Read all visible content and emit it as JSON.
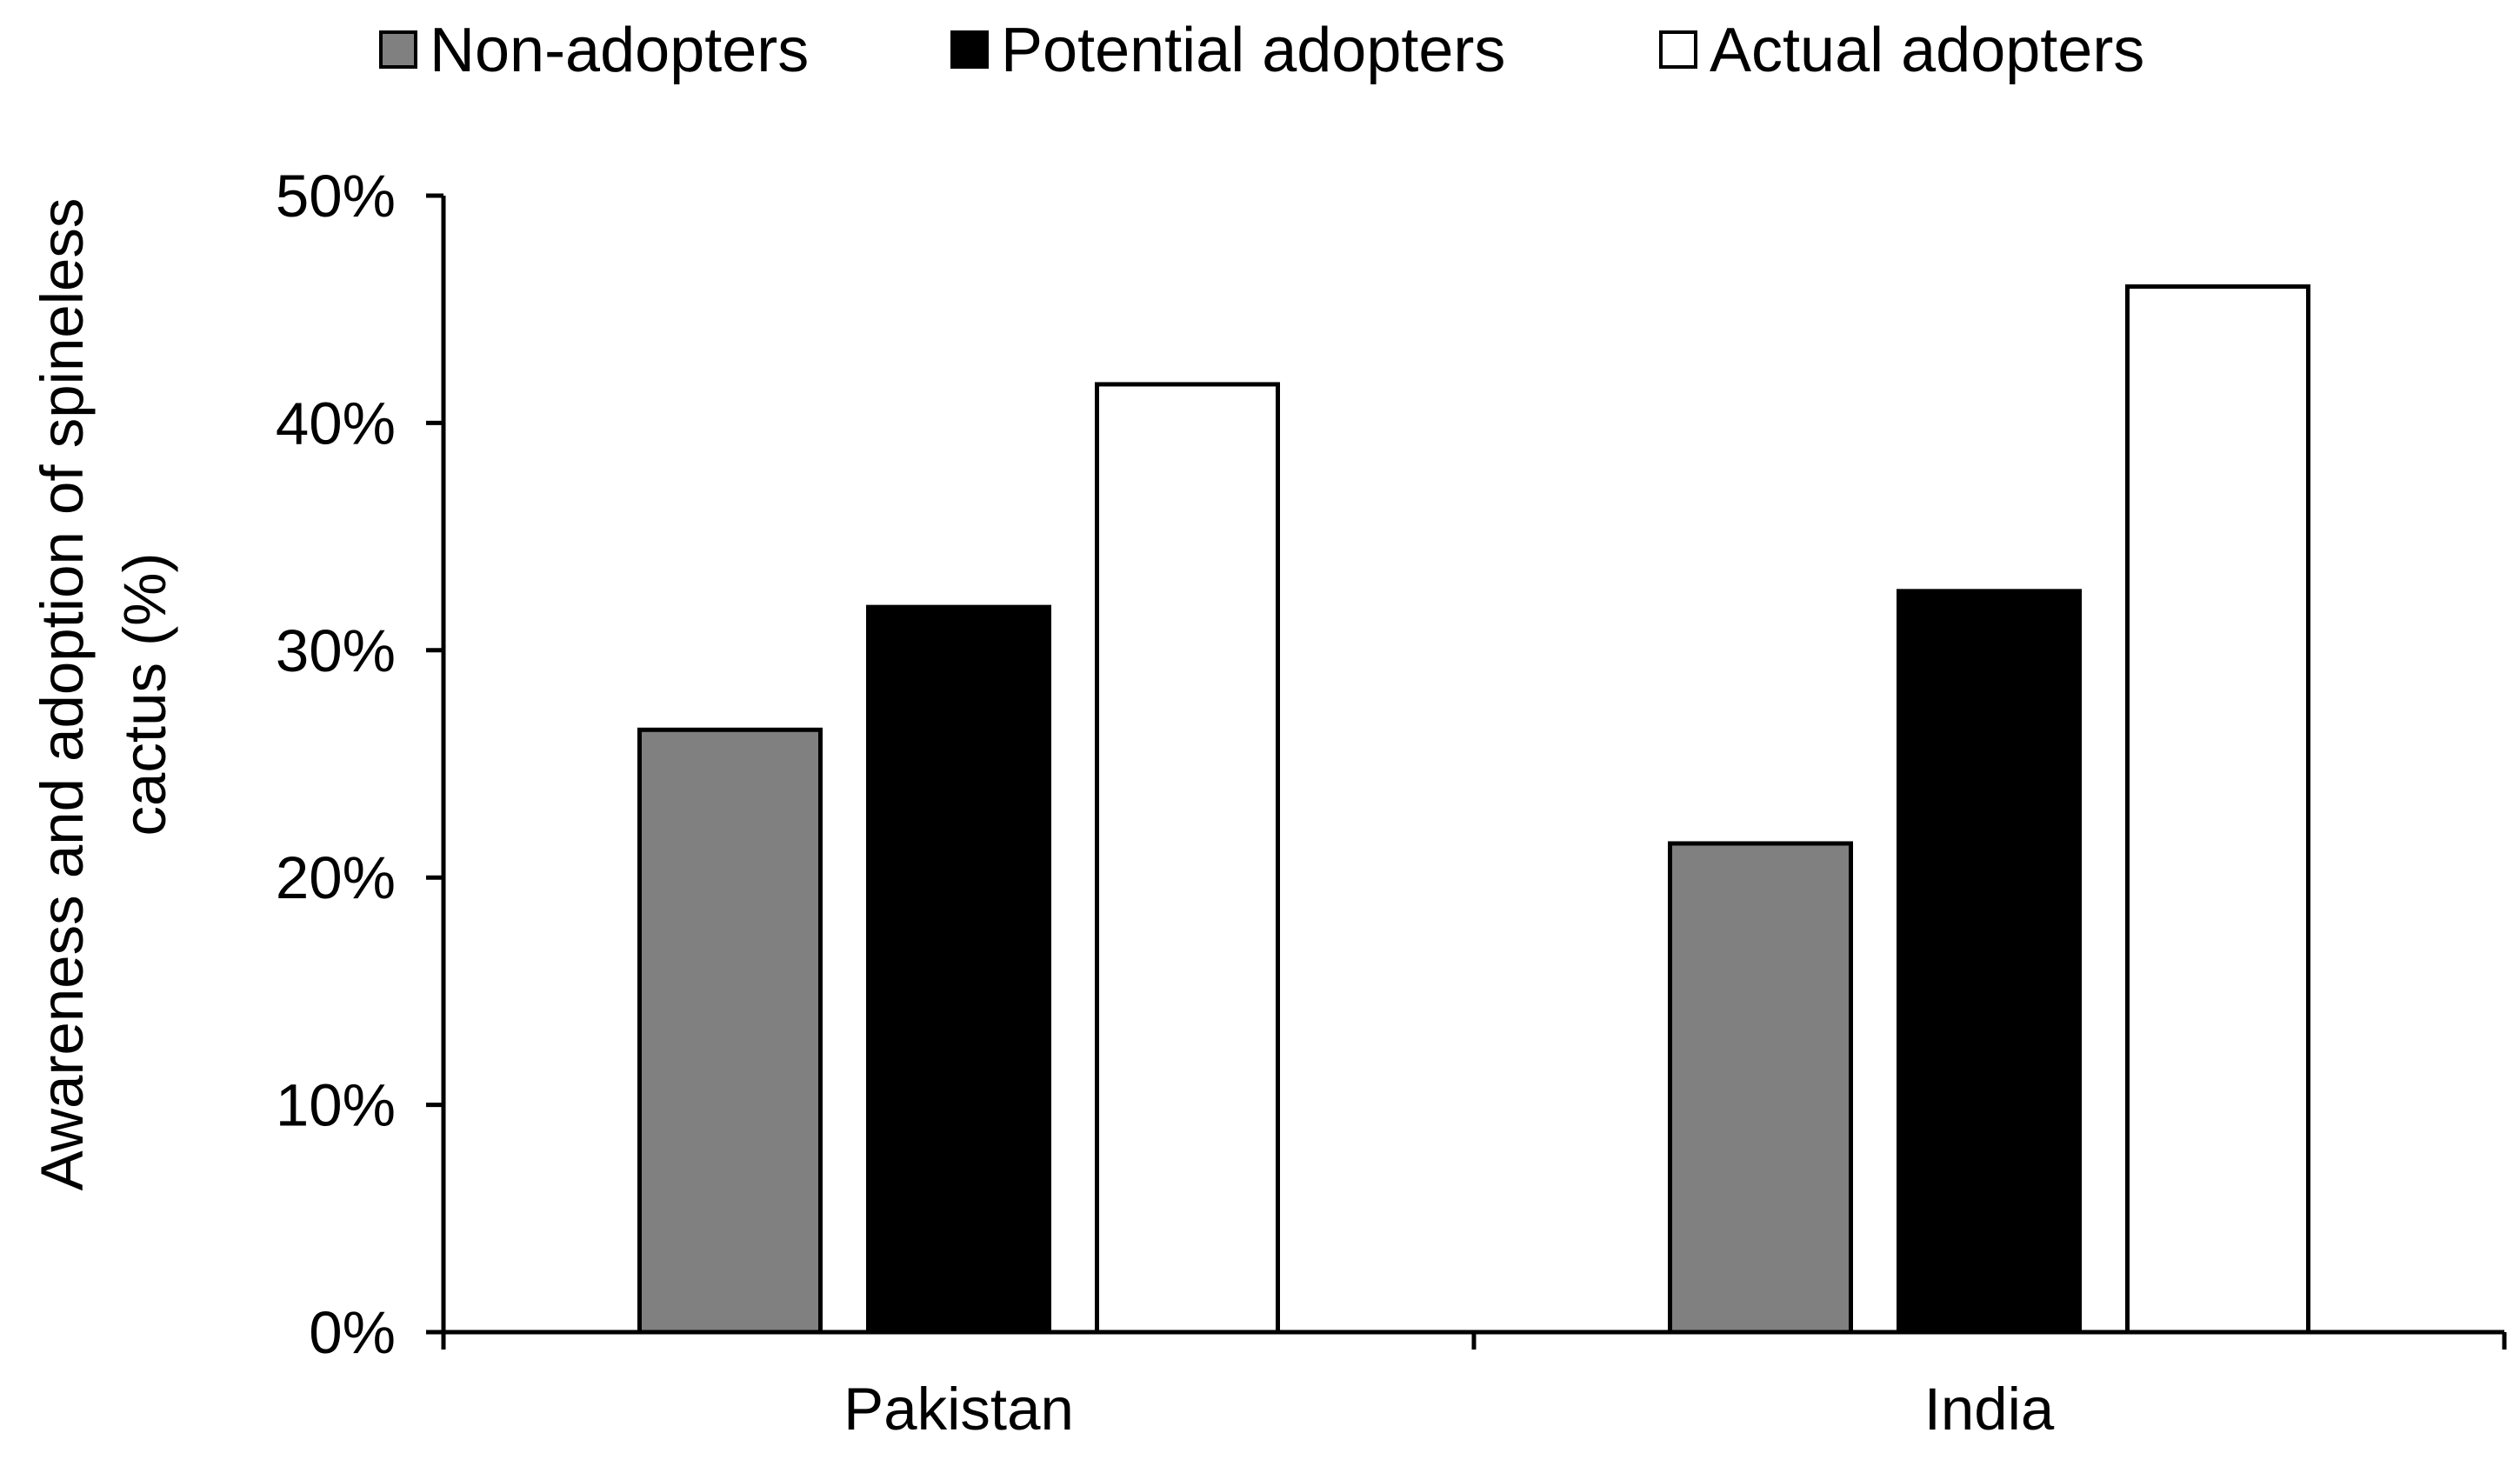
{
  "chart_data": {
    "type": "bar",
    "categories": [
      "Pakistan",
      "India"
    ],
    "series": [
      {
        "name": "Non-adopters",
        "values": [
          26.5,
          21.5
        ],
        "color": "#808080"
      },
      {
        "name": "Potential adopters",
        "values": [
          31.9,
          32.6
        ],
        "color": "#000000"
      },
      {
        "name": "Actual adopters",
        "values": [
          41.7,
          46.0
        ],
        "color": "#ffffff"
      }
    ],
    "title": "",
    "xlabel": "",
    "ylabel": "Awareness and adoption of spineless cactus (%)",
    "ylabel_lines": [
      "Awareness and adoption of spineless",
      "cactus (%)"
    ],
    "ylim": [
      0,
      50
    ],
    "yticks": [
      0,
      10,
      20,
      30,
      40,
      50
    ],
    "ytick_labels": [
      "0%",
      "10%",
      "20%",
      "30%",
      "40%",
      "50%"
    ],
    "grid": false,
    "legend_position": "top"
  }
}
